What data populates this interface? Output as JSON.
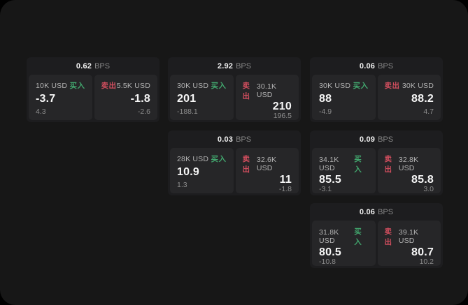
{
  "labels": {
    "buy": "买入",
    "sell": "卖出",
    "bps_suffix": "BPS"
  },
  "colors": {
    "page_bg": "#171717",
    "card_bg": "#1d1d1f",
    "panel_bg": "#262628",
    "buy_green": "#42a76e",
    "sell_red": "#d14e5e",
    "value_white": "#f5f5f5",
    "muted_gray": "#8c8c8c"
  },
  "cards": [
    {
      "col": 0,
      "row": 0,
      "bps": "0.62",
      "buy": {
        "amount": "10K USD",
        "value": "-3.7",
        "change": "4.3"
      },
      "sell": {
        "amount": "5.5K USD",
        "value": "-1.8",
        "change": "-2.6"
      }
    },
    {
      "col": 1,
      "row": 0,
      "bps": "2.92",
      "buy": {
        "amount": "30K USD",
        "value": "201",
        "change": "-188.1"
      },
      "sell": {
        "amount": "30.1K USD",
        "value": "210",
        "change": "196.5"
      }
    },
    {
      "col": 2,
      "row": 0,
      "bps": "0.06",
      "buy": {
        "amount": "30K USD",
        "value": "88",
        "change": "-4.9"
      },
      "sell": {
        "amount": "30K USD",
        "value": "88.2",
        "change": "4.7"
      }
    },
    {
      "col": 1,
      "row": 1,
      "bps": "0.03",
      "buy": {
        "amount": "28K USD",
        "value": "10.9",
        "change": "1.3"
      },
      "sell": {
        "amount": "32.6K USD",
        "value": "11",
        "change": "-1.8"
      }
    },
    {
      "col": 2,
      "row": 1,
      "bps": "0.09",
      "buy": {
        "amount": "34.1K USD",
        "value": "85.5",
        "change": "-3.1"
      },
      "sell": {
        "amount": "32.8K USD",
        "value": "85.8",
        "change": "3.0"
      }
    },
    {
      "col": 2,
      "row": 2,
      "bps": "0.06",
      "buy": {
        "amount": "31.8K USD",
        "value": "80.5",
        "change": "-10.8"
      },
      "sell": {
        "amount": "39.1K USD",
        "value": "80.7",
        "change": "10.2"
      }
    }
  ]
}
